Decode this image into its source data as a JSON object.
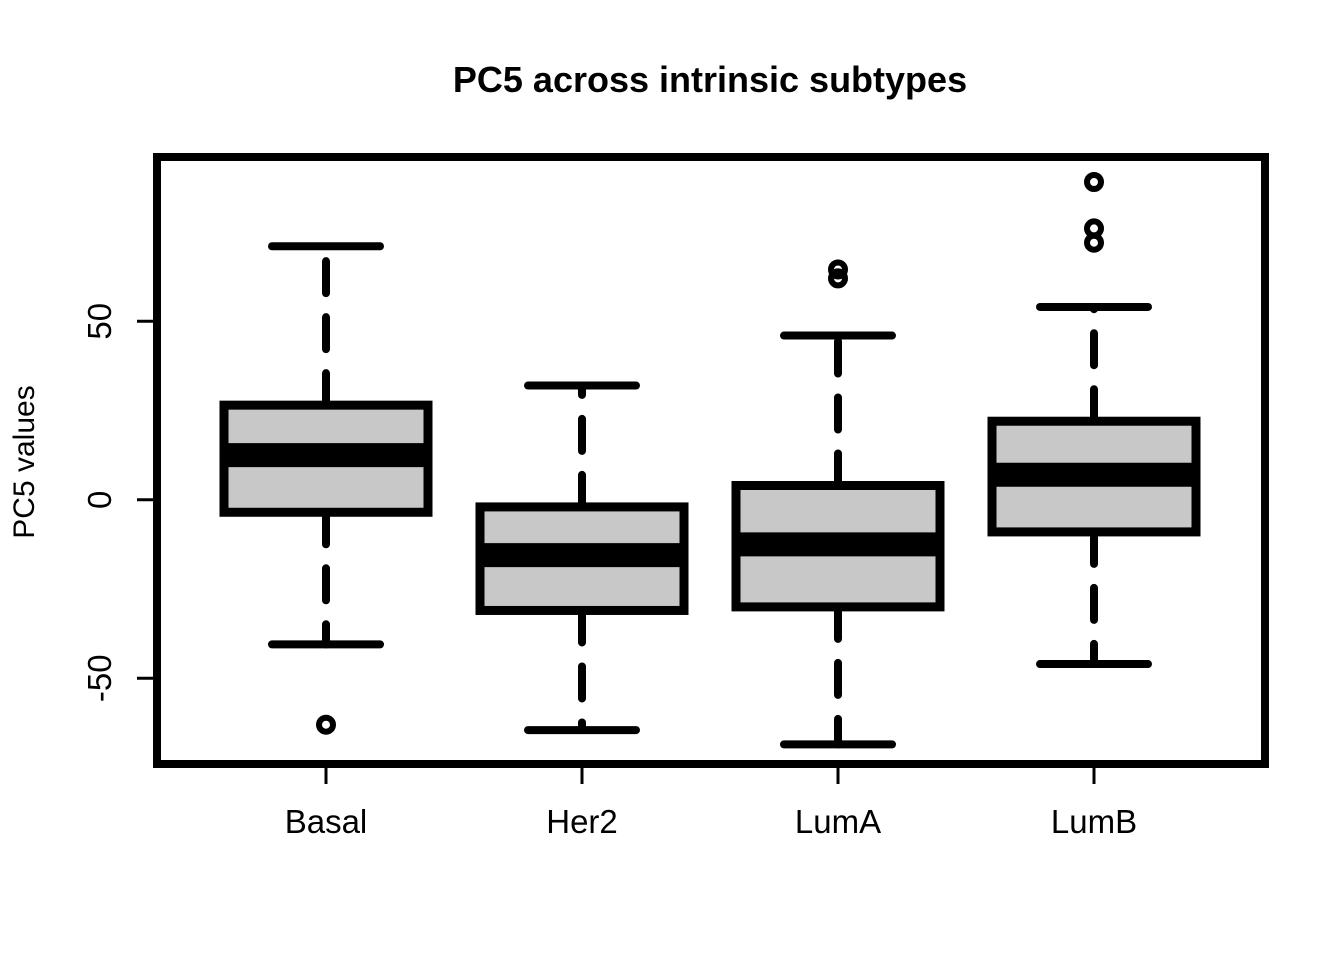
{
  "chart_data": {
    "type": "boxplot",
    "title": "PC5 across intrinsic subtypes",
    "xlabel": "",
    "ylabel": "PC5 values",
    "ylim": [
      -74,
      96
    ],
    "yticks": [
      -50,
      0,
      50
    ],
    "ytick_labels": [
      "-50",
      "0",
      "50"
    ],
    "categories": [
      "Basal",
      "Her2",
      "LumA",
      "LumB"
    ],
    "boxes": [
      {
        "whisker_low": -40.5,
        "q1": -3.5,
        "median": 12.5,
        "q3": 26.5,
        "whisker_high": 71,
        "outliers": [
          -63
        ]
      },
      {
        "whisker_low": -64.5,
        "q1": -31,
        "median": -15.5,
        "q3": -2,
        "whisker_high": 32,
        "outliers": []
      },
      {
        "whisker_low": -68.5,
        "q1": -30,
        "median": -12.5,
        "q3": 4,
        "whisker_high": 46,
        "outliers": [
          62,
          64.5
        ]
      },
      {
        "whisker_low": -46,
        "q1": -9,
        "median": 7,
        "q3": 22,
        "whisker_high": 54,
        "outliers": [
          72,
          76,
          89
        ]
      }
    ],
    "box_fill": "#c8c8c8",
    "stroke_color": "#000000",
    "grid": false,
    "legend": "none"
  }
}
